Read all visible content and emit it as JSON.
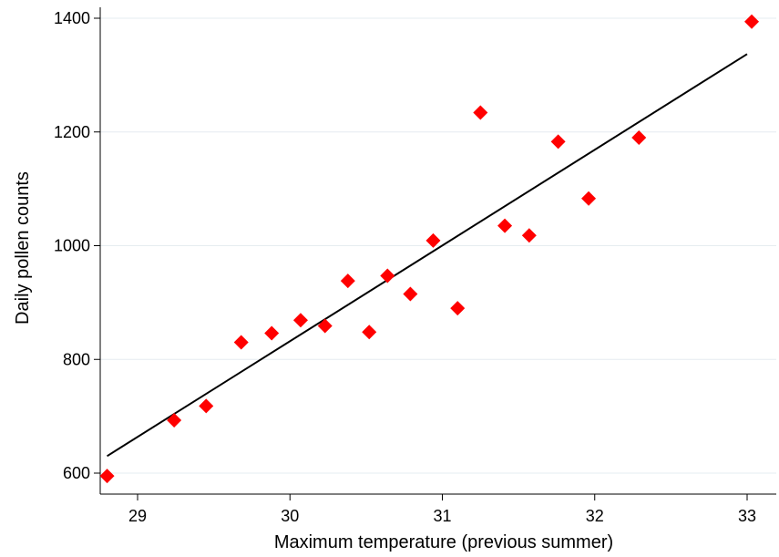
{
  "chart_data": {
    "type": "scatter",
    "title": "",
    "xlabel": "Maximum temperature (previous summer)",
    "ylabel": "Daily pollen counts",
    "xlim": [
      28.75,
      33.05
    ],
    "ylim": [
      580,
      1410
    ],
    "xticks": [
      "29",
      "30",
      "31",
      "32",
      "33"
    ],
    "yticks": [
      "600",
      "800",
      "1000",
      "1200",
      "1400"
    ],
    "grid": "horizontal",
    "point_color": "#ff0000",
    "line_color": "#000000",
    "points": [
      {
        "x": 28.8,
        "y": 595
      },
      {
        "x": 29.24,
        "y": 693
      },
      {
        "x": 29.45,
        "y": 718
      },
      {
        "x": 29.68,
        "y": 830
      },
      {
        "x": 29.88,
        "y": 846
      },
      {
        "x": 30.07,
        "y": 869
      },
      {
        "x": 30.23,
        "y": 859
      },
      {
        "x": 30.38,
        "y": 938
      },
      {
        "x": 30.52,
        "y": 848
      },
      {
        "x": 30.64,
        "y": 947
      },
      {
        "x": 30.79,
        "y": 915
      },
      {
        "x": 30.94,
        "y": 1009
      },
      {
        "x": 31.1,
        "y": 890
      },
      {
        "x": 31.25,
        "y": 1234
      },
      {
        "x": 31.41,
        "y": 1035
      },
      {
        "x": 31.57,
        "y": 1018
      },
      {
        "x": 31.76,
        "y": 1183
      },
      {
        "x": 31.96,
        "y": 1083
      },
      {
        "x": 32.29,
        "y": 1190
      },
      {
        "x": 33.03,
        "y": 1394
      }
    ],
    "fit_line": {
      "x": [
        28.8,
        33.0
      ],
      "y": [
        630,
        1337
      ]
    }
  }
}
